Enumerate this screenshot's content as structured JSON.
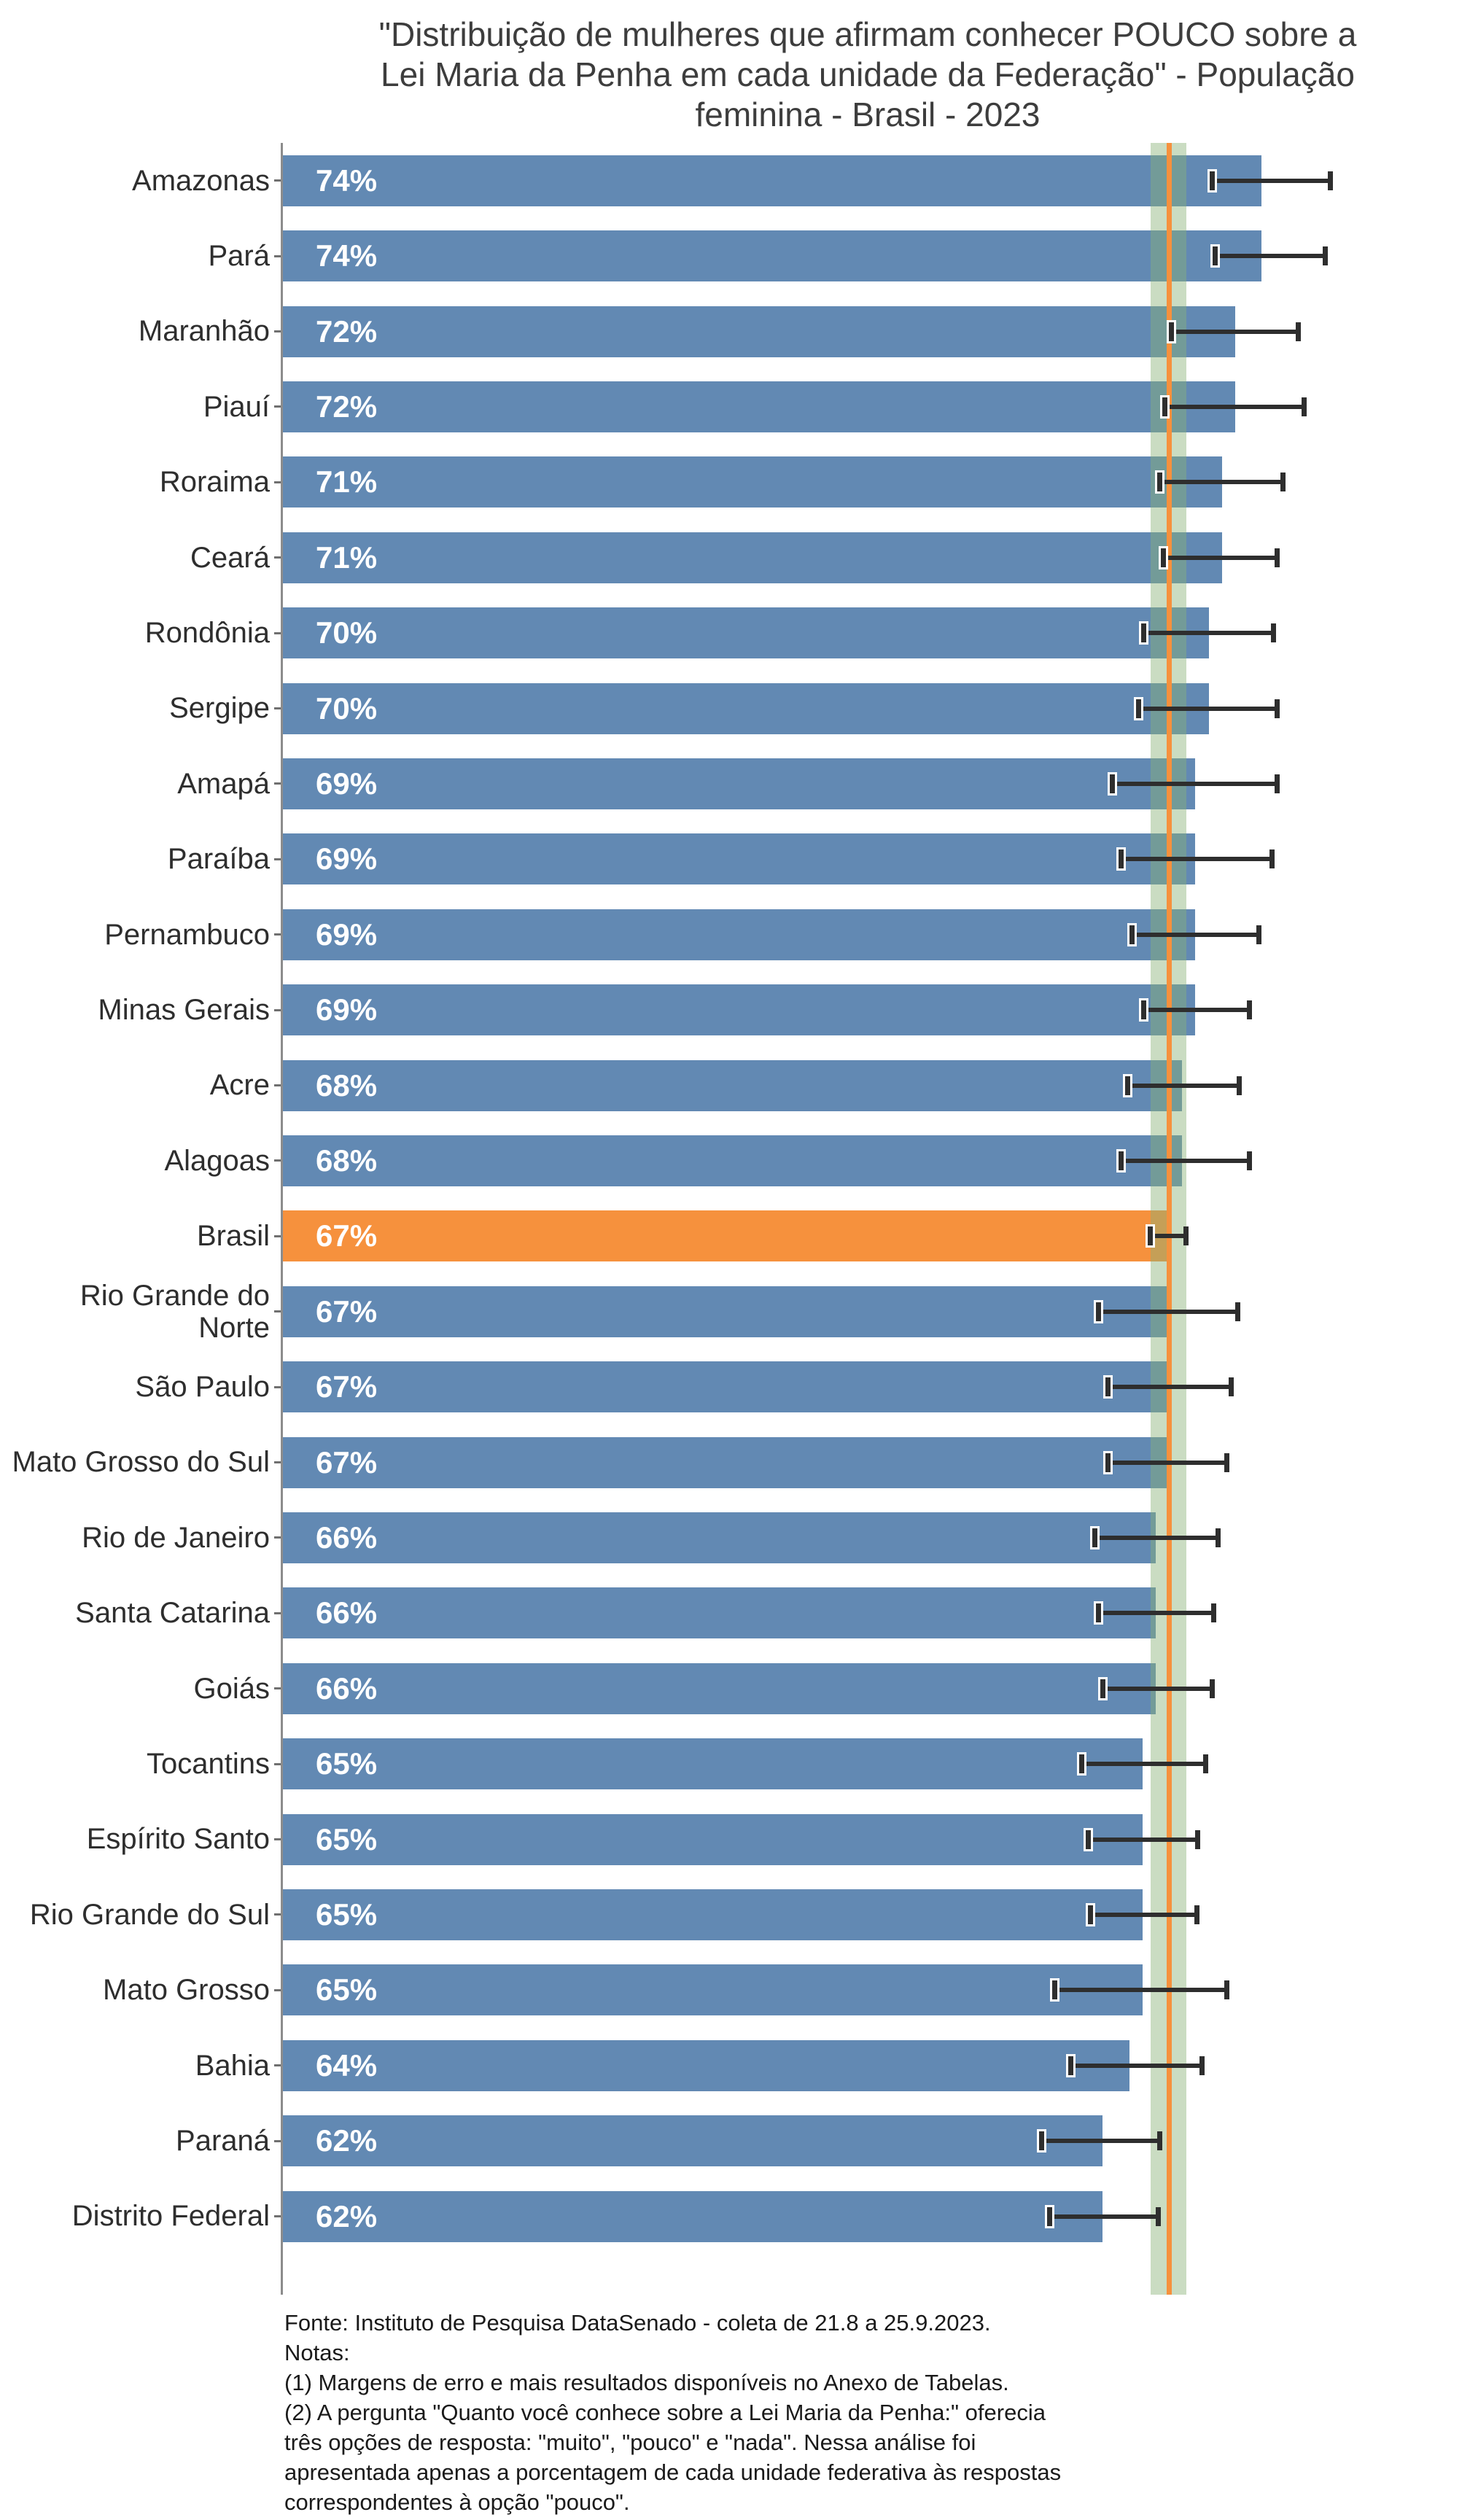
{
  "title": {
    "line1": "\"Distribuição de mulheres que afirmam conhecer POUCO sobre a",
    "line2": "Lei Maria da Penha em cada unidade da Federação\" - População",
    "line3": "feminina - Brasil - 2023"
  },
  "footer": {
    "lines": [
      "Fonte: Instituto de Pesquisa DataSenado - coleta de 21.8 a 25.9.2023.",
      "Notas:",
      "(1) Margens de erro e mais resultados disponíveis no Anexo de Tabelas.",
      "(2) A pergunta \"Quanto você conhece sobre a Lei Maria da Penha:\" oferecia",
      "três opções de resposta: \"muito\", \"pouco\" e \"nada\". Nessa análise foi",
      "apresentada apenas a porcentagem de cada unidade federativa às respostas",
      "correspondentes à opção \"pouco\"."
    ]
  },
  "colors": {
    "bar": "#6289b3",
    "highlight": "#f6913d",
    "band": "rgba(138,178,120,0.45)",
    "reference_line": "#f6913d",
    "error_bar": "#2e2e2e",
    "axis": "#8c8c8c",
    "tick": "#707070",
    "label_text": "#2e2e2e",
    "value_text": "#ffffff",
    "title_text": "#3d3d3d",
    "footer_text": "#1a1a1a"
  },
  "chart_data": {
    "type": "bar",
    "orientation": "horizontal",
    "unit": "%",
    "title": "\"Distribuição de mulheres que afirmam conhecer POUCO sobre a Lei Maria da Penha em cada unidade da Federação\" - População feminina - Brasil - 2023",
    "xlabel": "",
    "ylabel": "",
    "xlim": [
      0,
      80
    ],
    "grid": false,
    "legend": false,
    "reference": {
      "label": "Brasil",
      "value": 67,
      "band_low": 65.6,
      "band_high": 68.3
    },
    "rows": [
      {
        "label": "Amazonas",
        "value": 74,
        "value_label": "74%",
        "err_low": 70.3,
        "err_high": 79.2,
        "highlight": false
      },
      {
        "label": "Pará",
        "value": 74,
        "value_label": "74%",
        "err_low": 70.5,
        "err_high": 78.8,
        "highlight": false
      },
      {
        "label": "Maranhão",
        "value": 72,
        "value_label": "72%",
        "err_low": 67.2,
        "err_high": 76.8,
        "highlight": false
      },
      {
        "label": "Piauí",
        "value": 72,
        "value_label": "72%",
        "err_low": 66.7,
        "err_high": 77.2,
        "highlight": false
      },
      {
        "label": "Roraima",
        "value": 71,
        "value_label": "71%",
        "err_low": 66.3,
        "err_high": 75.6,
        "highlight": false
      },
      {
        "label": "Ceará",
        "value": 71,
        "value_label": "71%",
        "err_low": 66.6,
        "err_high": 75.2,
        "highlight": false
      },
      {
        "label": "Rondônia",
        "value": 70,
        "value_label": "70%",
        "err_low": 65.1,
        "err_high": 74.9,
        "highlight": false
      },
      {
        "label": "Sergipe",
        "value": 70,
        "value_label": "70%",
        "err_low": 64.7,
        "err_high": 75.2,
        "highlight": false
      },
      {
        "label": "Amapá",
        "value": 69,
        "value_label": "69%",
        "err_low": 62.7,
        "err_high": 75.2,
        "highlight": false
      },
      {
        "label": "Paraíba",
        "value": 69,
        "value_label": "69%",
        "err_low": 63.4,
        "err_high": 74.8,
        "highlight": false
      },
      {
        "label": "Pernambuco",
        "value": 69,
        "value_label": "69%",
        "err_low": 64.2,
        "err_high": 73.8,
        "highlight": false
      },
      {
        "label": "Minas Gerais",
        "value": 69,
        "value_label": "69%",
        "err_low": 65.1,
        "err_high": 73.1,
        "highlight": false
      },
      {
        "label": "Acre",
        "value": 68,
        "value_label": "68%",
        "err_low": 63.9,
        "err_high": 72.3,
        "highlight": false
      },
      {
        "label": "Alagoas",
        "value": 68,
        "value_label": "68%",
        "err_low": 63.4,
        "err_high": 73.1,
        "highlight": false
      },
      {
        "label": "Brasil",
        "value": 67,
        "value_label": "67%",
        "err_low": 65.6,
        "err_high": 68.3,
        "highlight": true
      },
      {
        "label": "Rio Grande do\nNorte",
        "value": 67,
        "value_label": "67%",
        "err_low": 61.7,
        "err_high": 72.2,
        "highlight": false
      },
      {
        "label": "São Paulo",
        "value": 67,
        "value_label": "67%",
        "err_low": 62.4,
        "err_high": 71.7,
        "highlight": false
      },
      {
        "label": "Mato Grosso do Sul",
        "value": 67,
        "value_label": "67%",
        "err_low": 62.4,
        "err_high": 71.4,
        "highlight": false
      },
      {
        "label": "Rio de Janeiro",
        "value": 66,
        "value_label": "66%",
        "err_low": 61.4,
        "err_high": 70.7,
        "highlight": false
      },
      {
        "label": "Santa Catarina",
        "value": 66,
        "value_label": "66%",
        "err_low": 61.7,
        "err_high": 70.4,
        "highlight": false
      },
      {
        "label": "Goiás",
        "value": 66,
        "value_label": "66%",
        "err_low": 62.0,
        "err_high": 70.3,
        "highlight": false
      },
      {
        "label": "Tocantins",
        "value": 65,
        "value_label": "65%",
        "err_low": 60.4,
        "err_high": 69.8,
        "highlight": false
      },
      {
        "label": "Espírito Santo",
        "value": 65,
        "value_label": "65%",
        "err_low": 60.9,
        "err_high": 69.2,
        "highlight": false
      },
      {
        "label": "Rio Grande do Sul",
        "value": 65,
        "value_label": "65%",
        "err_low": 61.1,
        "err_high": 69.1,
        "highlight": false
      },
      {
        "label": "Mato Grosso",
        "value": 65,
        "value_label": "65%",
        "err_low": 58.4,
        "err_high": 71.4,
        "highlight": false
      },
      {
        "label": "Bahia",
        "value": 64,
        "value_label": "64%",
        "err_low": 59.6,
        "err_high": 69.5,
        "highlight": false
      },
      {
        "label": "Paraná",
        "value": 62,
        "value_label": "62%",
        "err_low": 57.4,
        "err_high": 66.3,
        "highlight": false
      },
      {
        "label": "Distrito Federal",
        "value": 62,
        "value_label": "62%",
        "err_low": 58.0,
        "err_high": 66.2,
        "highlight": false
      }
    ]
  }
}
